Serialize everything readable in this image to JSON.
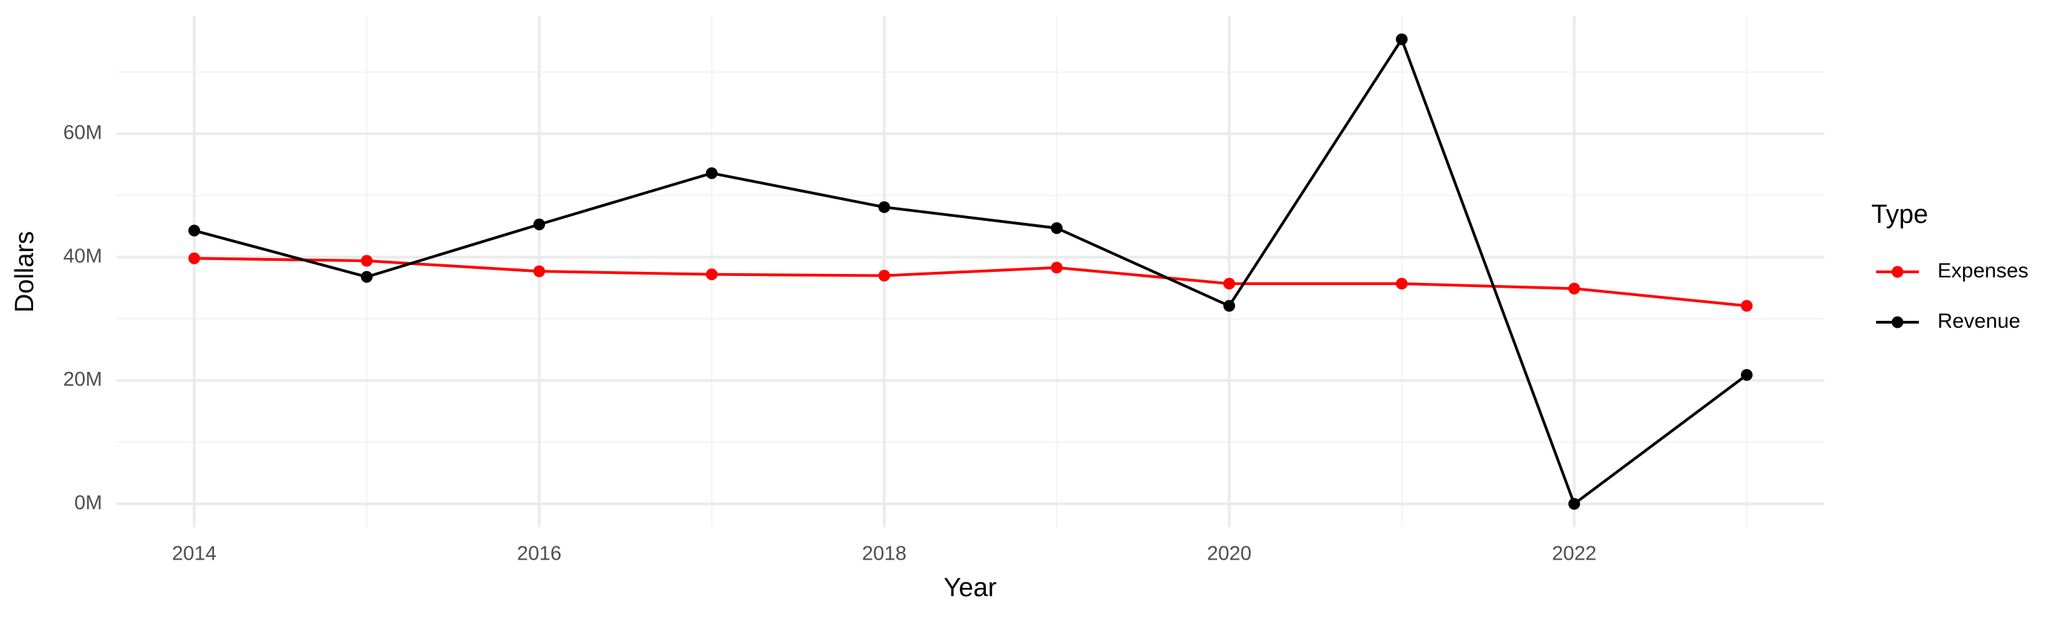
{
  "chart_data": {
    "type": "line",
    "x_label": "Year",
    "y_label": "Dollars",
    "x": [
      2014,
      2015,
      2016,
      2017,
      2018,
      2019,
      2020,
      2021,
      2022,
      2023
    ],
    "series": [
      {
        "name": "Expenses",
        "color": "#ff0000",
        "values": [
          39.8,
          39.4,
          37.7,
          37.2,
          37.0,
          38.3,
          35.7,
          35.7,
          34.9,
          32.1
        ]
      },
      {
        "name": "Revenue",
        "color": "#000000",
        "values": [
          44.3,
          36.8,
          45.3,
          53.6,
          48.1,
          44.7,
          32.1,
          75.3,
          0,
          20.9
        ]
      }
    ],
    "xlim": [
      2013.55,
      2023.45
    ],
    "xticks": [
      2014,
      2016,
      2018,
      2020,
      2022
    ],
    "ylim": [
      -3.77,
      79.1
    ],
    "yticks": [
      {
        "value": 0,
        "label": "0M"
      },
      {
        "value": 20,
        "label": "20M"
      },
      {
        "value": 40,
        "label": "40M"
      },
      {
        "value": 60,
        "label": "60M"
      }
    ],
    "grid": true,
    "legend_title": "Type",
    "legend_position": "right"
  }
}
